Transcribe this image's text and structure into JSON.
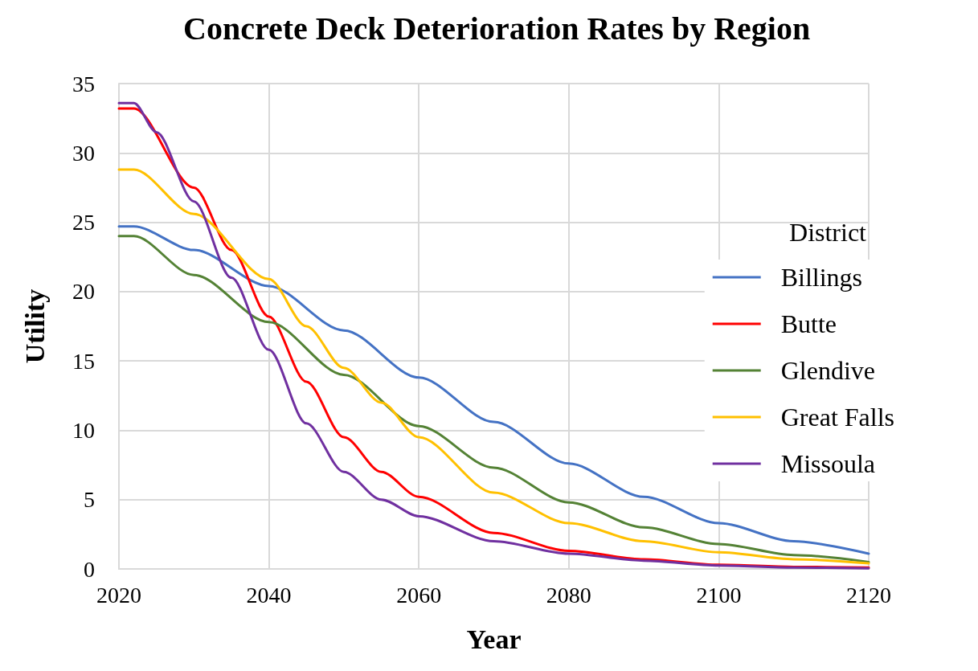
{
  "chart_data": {
    "type": "line",
    "title": "Concrete Deck Deterioration Rates by Region",
    "xlabel": "Year",
    "ylabel": "Utility",
    "legend_title": "District",
    "legend": "right",
    "grid": true,
    "marker": "none",
    "line_style": "solid",
    "xlim": [
      2020,
      2120
    ],
    "xticks": [
      2020,
      2040,
      2060,
      2080,
      2100,
      2120
    ],
    "ylim": [
      0,
      35
    ],
    "yticks": [
      0,
      5,
      10,
      15,
      20,
      25,
      30,
      35
    ],
    "series": [
      {
        "name": "Billings",
        "color": "#4472c4",
        "x": [
          2020,
          2022,
          2030,
          2040,
          2050,
          2060,
          2070,
          2080,
          2090,
          2100,
          2110,
          2120
        ],
        "values": [
          24.7,
          24.7,
          23.0,
          20.4,
          17.2,
          13.8,
          10.6,
          7.6,
          5.2,
          3.3,
          2.0,
          1.1
        ]
      },
      {
        "name": "Butte",
        "color": "#ff0000",
        "x": [
          2020,
          2022,
          2030,
          2035,
          2040,
          2045,
          2050,
          2055,
          2060,
          2070,
          2080,
          2090,
          2100,
          2110,
          2120
        ],
        "values": [
          33.2,
          33.2,
          27.5,
          23.0,
          18.2,
          13.5,
          9.5,
          7.0,
          5.2,
          2.6,
          1.3,
          0.7,
          0.3,
          0.15,
          0.1
        ]
      },
      {
        "name": "Glendive",
        "color": "#548235",
        "x": [
          2020,
          2022,
          2030,
          2040,
          2050,
          2060,
          2070,
          2080,
          2090,
          2100,
          2110,
          2120
        ],
        "values": [
          24.0,
          24.0,
          21.2,
          17.8,
          14.0,
          10.3,
          7.3,
          4.8,
          3.0,
          1.8,
          1.0,
          0.5
        ]
      },
      {
        "name": "Great Falls",
        "color": "#ffc000",
        "x": [
          2020,
          2022,
          2030,
          2040,
          2045,
          2050,
          2055,
          2060,
          2070,
          2080,
          2090,
          2100,
          2110,
          2120
        ],
        "values": [
          28.8,
          28.8,
          25.6,
          20.9,
          17.5,
          14.5,
          12.0,
          9.5,
          5.5,
          3.3,
          2.0,
          1.2,
          0.7,
          0.4
        ]
      },
      {
        "name": "Missoula",
        "color": "#7030a0",
        "x": [
          2020,
          2022,
          2025,
          2030,
          2035,
          2040,
          2045,
          2050,
          2055,
          2060,
          2070,
          2080,
          2090,
          2100,
          2110,
          2120
        ],
        "values": [
          33.6,
          33.6,
          31.5,
          26.5,
          21.0,
          15.8,
          10.5,
          7.0,
          5.0,
          3.8,
          2.0,
          1.1,
          0.6,
          0.25,
          0.1,
          0.05
        ]
      }
    ]
  }
}
